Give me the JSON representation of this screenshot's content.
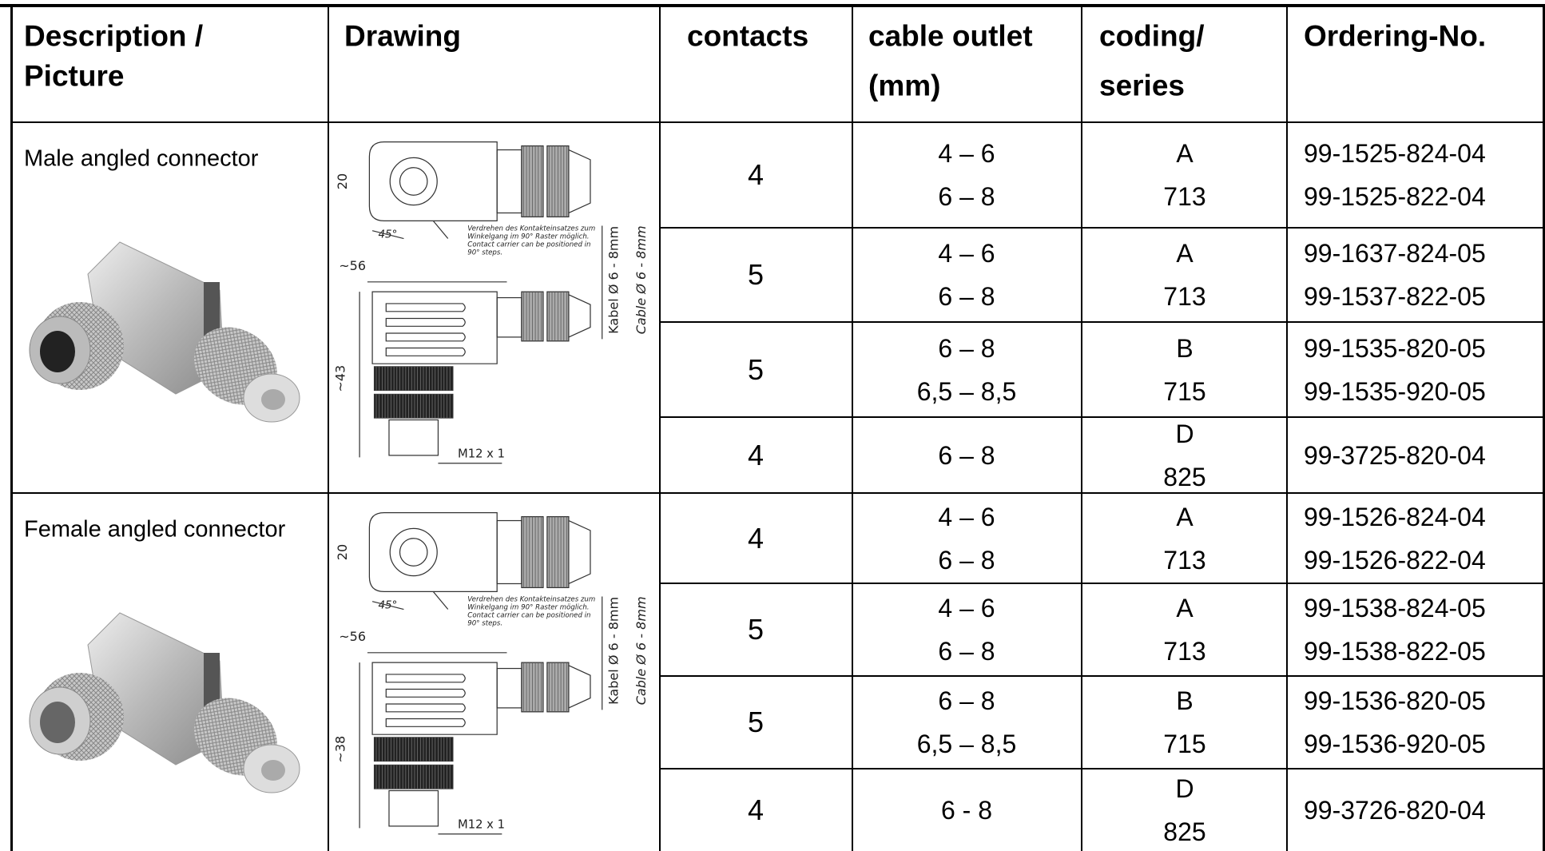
{
  "table": {
    "headers": [
      [
        "Description /",
        "Picture"
      ],
      [
        "Drawing"
      ],
      [
        "contacts"
      ],
      [
        "cable outlet",
        "(mm)"
      ],
      [
        "coding/",
        "series"
      ],
      [
        "Ordering-No."
      ]
    ],
    "groups": [
      {
        "description": "Male angled connector",
        "drawing": {
          "diameter": "20",
          "angle": "45°",
          "width": "~56",
          "height": "~43",
          "thread": "M12 x 1",
          "note_de": [
            "Verdrehen des Kontakteinsatzes zum",
            "Winkelgang im 90° Raster möglich."
          ],
          "note_en": [
            "Contact carrier can be positioned in",
            "90° steps."
          ],
          "cable_de": "Kabel Ø 6 - 8mm",
          "cable_en": "Cable Ø 6 - 8mm"
        },
        "rows": [
          {
            "contacts": 4,
            "cable_outlet": [
              "4 – 6",
              "6 – 8"
            ],
            "coding": [
              "A",
              "713"
            ],
            "ordering_no": [
              "99-1525-824-04",
              "99-1525-822-04"
            ]
          },
          {
            "contacts": 5,
            "cable_outlet": [
              "4 – 6",
              "6 – 8"
            ],
            "coding": [
              "A",
              "713"
            ],
            "ordering_no": [
              "99-1637-824-05",
              "99-1537-822-05"
            ]
          },
          {
            "contacts": 5,
            "cable_outlet": [
              "6 – 8",
              "6,5 – 8,5"
            ],
            "coding": [
              "B",
              "715"
            ],
            "ordering_no": [
              "99-1535-820-05",
              "99-1535-920-05"
            ]
          },
          {
            "contacts": 4,
            "cable_outlet": [
              "6 – 8"
            ],
            "coding": [
              "D",
              "825"
            ],
            "ordering_no": [
              "99-3725-820-04"
            ]
          }
        ]
      },
      {
        "description": "Female angled connector",
        "drawing": {
          "diameter": "20",
          "angle": "45°",
          "width": "~56",
          "height": "~38",
          "thread": "M12 x 1",
          "note_de": [
            "Verdrehen des Kontakteinsatzes zum",
            "Winkelgang im 90° Raster möglich."
          ],
          "note_en": [
            "Contact carrier can be positioned in",
            "90° steps."
          ],
          "cable_de": "Kabel Ø 6 - 8mm",
          "cable_en": "Cable Ø 6 - 8mm"
        },
        "rows": [
          {
            "contacts": 4,
            "cable_outlet": [
              "4 – 6",
              "6 – 8"
            ],
            "coding": [
              "A",
              "713"
            ],
            "ordering_no": [
              "99-1526-824-04",
              "99-1526-822-04"
            ]
          },
          {
            "contacts": 5,
            "cable_outlet": [
              "4 – 6",
              "6 – 8"
            ],
            "coding": [
              "A",
              "713"
            ],
            "ordering_no": [
              "99-1538-824-05",
              "99-1538-822-05"
            ]
          },
          {
            "contacts": 5,
            "cable_outlet": [
              "6 – 8",
              "6,5 – 8,5"
            ],
            "coding": [
              "B",
              "715"
            ],
            "ordering_no": [
              "99-1536-820-05",
              "99-1536-920-05"
            ]
          },
          {
            "contacts": 4,
            "cable_outlet": [
              "6 - 8"
            ],
            "coding": [
              "D",
              "825"
            ],
            "ordering_no": [
              "99-3726-820-04"
            ]
          }
        ]
      }
    ]
  }
}
